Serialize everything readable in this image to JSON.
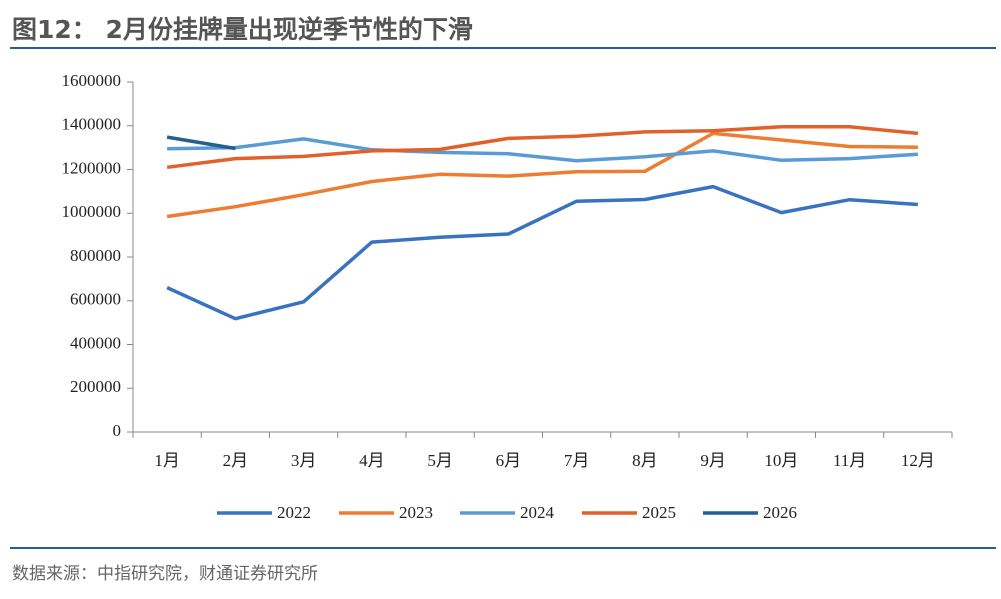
{
  "chart_data": {
    "type": "line",
    "title": "图12：  2月份挂牌量出现逆季节性的下滑",
    "source": "数据来源：中指研究院，财通证券研究所",
    "categories": [
      "1月",
      "2月",
      "3月",
      "4月",
      "5月",
      "6月",
      "7月",
      "8月",
      "9月",
      "10月",
      "11月",
      "12月"
    ],
    "series": [
      {
        "name": "2022",
        "color": "#3a72c2",
        "values": [
          660000,
          518000,
          595000,
          868000,
          890000,
          905000,
          1055000,
          1063000,
          1122000,
          1003000,
          1062000,
          1040000
        ]
      },
      {
        "name": "2023",
        "color": "#ed7d31",
        "values": [
          985000,
          1030000,
          1085000,
          1145000,
          1178000,
          1170000,
          1190000,
          1192000,
          1365000,
          1335000,
          1305000,
          1302000
        ]
      },
      {
        "name": "2024",
        "color": "#5b9bd5",
        "values": [
          1295000,
          1300000,
          1340000,
          1290000,
          1278000,
          1272000,
          1240000,
          1258000,
          1285000,
          1242000,
          1250000,
          1270000
        ]
      },
      {
        "name": "2025",
        "color": "#e2602a",
        "values": [
          1210000,
          1250000,
          1260000,
          1285000,
          1292000,
          1342000,
          1352000,
          1372000,
          1377000,
          1395000,
          1395000,
          1365000
        ]
      },
      {
        "name": "2026",
        "color": "#255e91",
        "values": [
          1348000,
          1296000,
          null,
          null,
          null,
          null,
          null,
          null,
          null,
          null,
          null,
          null
        ]
      }
    ],
    "ylim": [
      0,
      1600000
    ],
    "yticks": [
      0,
      200000,
      400000,
      600000,
      800000,
      1000000,
      1200000,
      1400000,
      1600000
    ]
  }
}
